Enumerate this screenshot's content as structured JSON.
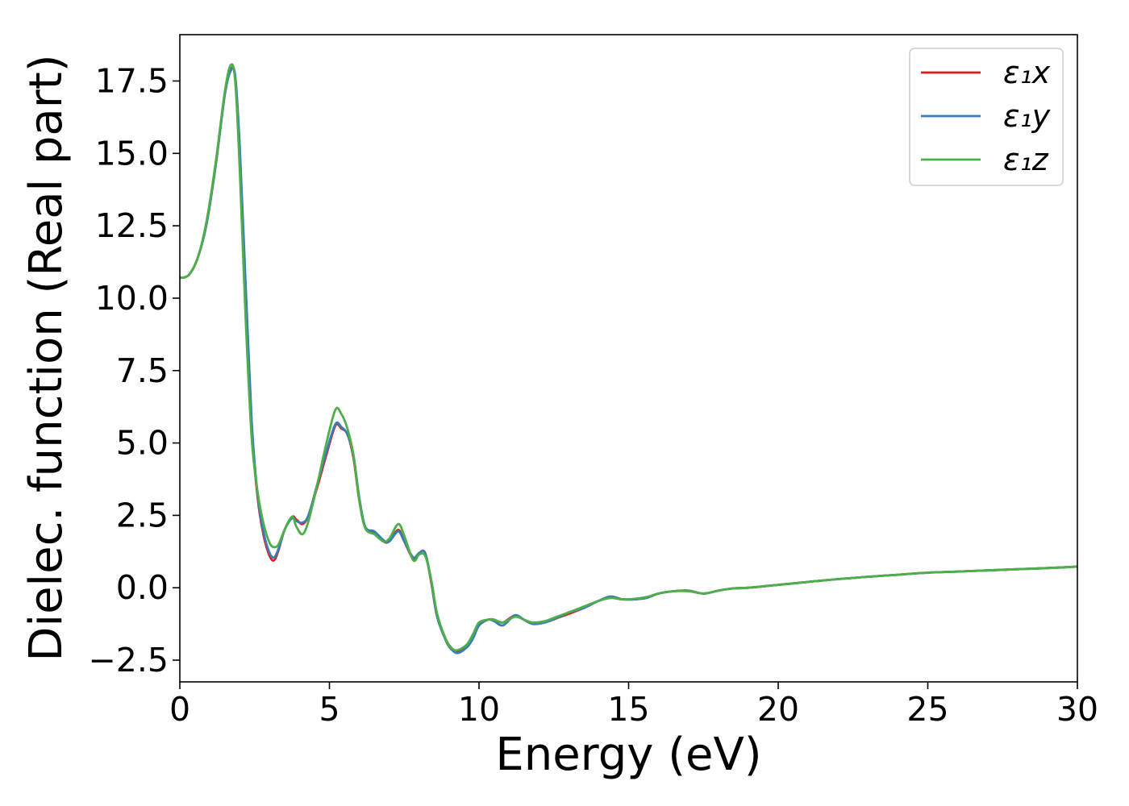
{
  "chart_data": {
    "type": "line",
    "xlabel": "Energy (eV)",
    "ylabel": "Dielec. function (Real part)",
    "xlim": [
      0,
      30
    ],
    "ylim": [
      -3.25,
      19.1
    ],
    "x_ticks": [
      0,
      5,
      10,
      15,
      20,
      25,
      30
    ],
    "x_tick_labels": [
      "0",
      "5",
      "10",
      "15",
      "20",
      "25",
      "30"
    ],
    "y_ticks": [
      -2.5,
      0.0,
      2.5,
      5.0,
      7.5,
      10.0,
      12.5,
      15.0,
      17.5
    ],
    "y_tick_labels": [
      "−2.5",
      "0.0",
      "2.5",
      "5.0",
      "7.5",
      "10.0",
      "12.5",
      "15.0",
      "17.5"
    ],
    "grid": false,
    "legend_position": "top-right",
    "series": [
      {
        "name": "ε₁x",
        "color": "#e41a1c",
        "x": [
          0,
          0.3,
          0.6,
          0.9,
          1.2,
          1.5,
          1.7,
          1.85,
          2.0,
          2.2,
          2.4,
          2.6,
          2.8,
          3.0,
          3.15,
          3.3,
          3.5,
          3.75,
          3.9,
          4.1,
          4.3,
          4.6,
          4.9,
          5.2,
          5.4,
          5.6,
          5.8,
          6.0,
          6.2,
          6.5,
          6.8,
          7.0,
          7.3,
          7.5,
          7.8,
          8.0,
          8.2,
          8.4,
          8.6,
          8.9,
          9.1,
          9.3,
          9.6,
          9.8,
          10.0,
          10.3,
          10.5,
          10.8,
          11.2,
          11.5,
          11.8,
          12.2,
          12.6,
          13.0,
          13.5,
          14.0,
          14.4,
          14.8,
          15.2,
          15.6,
          16.0,
          16.5,
          17.0,
          17.5,
          18.0,
          18.5,
          19.0,
          20.0,
          21.0,
          22.0,
          23.0,
          24.0,
          25.0,
          26.0,
          27.0,
          28.0,
          29.0,
          30.0
        ],
        "values": [
          10.7,
          10.8,
          11.4,
          12.6,
          14.6,
          17.0,
          17.9,
          17.6,
          15.0,
          10.0,
          5.5,
          3.1,
          1.8,
          1.1,
          0.95,
          1.3,
          2.0,
          2.45,
          2.35,
          2.2,
          2.5,
          3.5,
          4.6,
          5.6,
          5.5,
          5.3,
          4.5,
          3.0,
          2.1,
          1.9,
          1.6,
          1.6,
          2.0,
          1.6,
          1.0,
          1.2,
          1.2,
          0.2,
          -1.0,
          -1.8,
          -2.1,
          -2.2,
          -2.0,
          -1.7,
          -1.3,
          -1.1,
          -1.1,
          -1.2,
          -0.95,
          -1.1,
          -1.25,
          -1.2,
          -1.05,
          -0.9,
          -0.7,
          -0.45,
          -0.35,
          -0.4,
          -0.4,
          -0.35,
          -0.2,
          -0.12,
          -0.1,
          -0.2,
          -0.1,
          -0.02,
          0.0,
          0.1,
          0.2,
          0.3,
          0.38,
          0.45,
          0.52,
          0.56,
          0.6,
          0.64,
          0.68,
          0.73
        ]
      },
      {
        "name": "ε₁y",
        "color": "#377eb8",
        "x": [
          0,
          0.3,
          0.6,
          0.9,
          1.2,
          1.5,
          1.7,
          1.85,
          2.0,
          2.2,
          2.4,
          2.6,
          2.8,
          3.0,
          3.15,
          3.3,
          3.5,
          3.75,
          3.9,
          4.1,
          4.3,
          4.6,
          4.9,
          5.2,
          5.4,
          5.6,
          5.8,
          6.0,
          6.2,
          6.5,
          6.8,
          7.0,
          7.3,
          7.5,
          7.8,
          8.0,
          8.2,
          8.4,
          8.6,
          8.9,
          9.1,
          9.3,
          9.6,
          9.8,
          10.0,
          10.3,
          10.5,
          10.8,
          11.2,
          11.5,
          11.8,
          12.2,
          12.6,
          13.0,
          13.5,
          14.0,
          14.4,
          14.8,
          15.2,
          15.6,
          16.0,
          16.5,
          17.0,
          17.5,
          18.0,
          18.5,
          19.0,
          20.0,
          21.0,
          22.0,
          23.0,
          24.0,
          25.0,
          26.0,
          27.0,
          28.0,
          29.0,
          30.0
        ],
        "values": [
          10.7,
          10.8,
          11.4,
          12.6,
          14.6,
          17.0,
          17.85,
          17.7,
          15.3,
          10.5,
          5.8,
          3.2,
          1.9,
          1.2,
          1.05,
          1.35,
          2.0,
          2.4,
          2.3,
          2.25,
          2.5,
          3.6,
          4.7,
          5.65,
          5.55,
          5.3,
          4.6,
          3.1,
          2.1,
          1.95,
          1.65,
          1.6,
          1.95,
          1.6,
          1.05,
          1.2,
          1.2,
          0.25,
          -1.0,
          -1.85,
          -2.15,
          -2.25,
          -2.05,
          -1.75,
          -1.3,
          -1.1,
          -1.15,
          -1.3,
          -0.95,
          -1.1,
          -1.25,
          -1.2,
          -1.05,
          -0.85,
          -0.7,
          -0.45,
          -0.3,
          -0.4,
          -0.4,
          -0.35,
          -0.2,
          -0.12,
          -0.1,
          -0.2,
          -0.1,
          -0.02,
          0.0,
          0.1,
          0.2,
          0.3,
          0.38,
          0.45,
          0.52,
          0.56,
          0.6,
          0.64,
          0.68,
          0.73
        ]
      },
      {
        "name": "ε₁z",
        "color": "#4daf4a",
        "x": [
          0,
          0.3,
          0.6,
          0.9,
          1.2,
          1.5,
          1.7,
          1.85,
          2.0,
          2.2,
          2.4,
          2.6,
          2.8,
          3.0,
          3.15,
          3.3,
          3.5,
          3.75,
          3.9,
          4.1,
          4.3,
          4.6,
          4.9,
          5.2,
          5.4,
          5.6,
          5.8,
          6.0,
          6.2,
          6.5,
          6.8,
          7.0,
          7.3,
          7.5,
          7.8,
          8.0,
          8.2,
          8.4,
          8.6,
          8.9,
          9.1,
          9.3,
          9.6,
          9.8,
          10.0,
          10.3,
          10.5,
          10.8,
          11.2,
          11.5,
          11.8,
          12.2,
          12.6,
          13.0,
          13.5,
          14.0,
          14.4,
          14.8,
          15.2,
          15.6,
          16.0,
          16.5,
          17.0,
          17.5,
          18.0,
          18.5,
          19.0,
          20.0,
          21.0,
          22.0,
          23.0,
          24.0,
          25.0,
          26.0,
          27.0,
          28.0,
          29.0,
          30.0
        ],
        "values": [
          10.7,
          10.8,
          11.4,
          12.7,
          14.7,
          17.1,
          18.05,
          17.5,
          14.5,
          9.3,
          5.2,
          3.3,
          2.2,
          1.55,
          1.4,
          1.5,
          2.0,
          2.45,
          2.1,
          1.85,
          2.3,
          3.6,
          5.0,
          6.15,
          6.0,
          5.5,
          4.6,
          3.0,
          2.05,
          1.85,
          1.6,
          1.7,
          2.2,
          1.8,
          0.95,
          1.15,
          1.1,
          0.3,
          -0.9,
          -1.8,
          -2.1,
          -2.15,
          -1.95,
          -1.6,
          -1.2,
          -1.1,
          -1.1,
          -1.2,
          -1.0,
          -1.1,
          -1.2,
          -1.15,
          -1.0,
          -0.85,
          -0.65,
          -0.45,
          -0.35,
          -0.4,
          -0.38,
          -0.32,
          -0.2,
          -0.12,
          -0.12,
          -0.2,
          -0.1,
          -0.02,
          0.0,
          0.1,
          0.2,
          0.3,
          0.38,
          0.45,
          0.52,
          0.56,
          0.6,
          0.64,
          0.68,
          0.73
        ]
      }
    ]
  }
}
